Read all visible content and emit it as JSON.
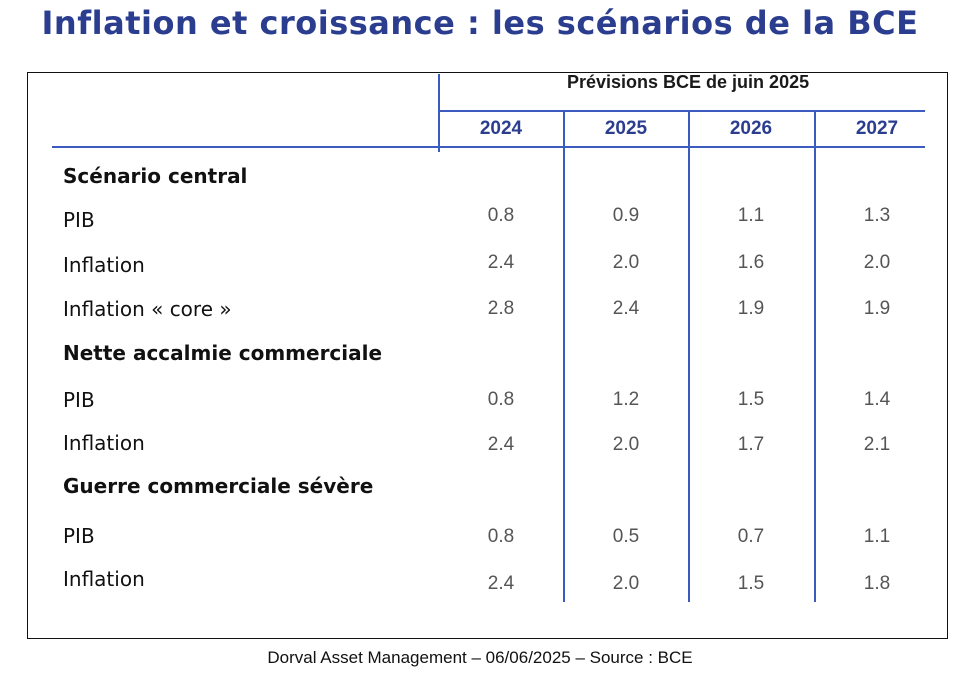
{
  "title": "Inflation et croissance : les scénarios de la BCE",
  "colors": {
    "title": "#2b3d8f",
    "accent": "#3d5bbf",
    "text": "#111111",
    "value": "#555555"
  },
  "table": {
    "super_header": "Prévisions BCE de juin 2025",
    "years": [
      "2024",
      "2025",
      "2026",
      "2027"
    ],
    "rows": [
      {
        "label": "Scénario central",
        "section": true,
        "values": []
      },
      {
        "label": "PIB",
        "section": false,
        "values": [
          "0.8",
          "0.9",
          "1.1",
          "1.3"
        ]
      },
      {
        "label": "Inflation",
        "section": false,
        "values": [
          "2.4",
          "2.0",
          "1.6",
          "2.0"
        ]
      },
      {
        "label": "Inflation « core »",
        "section": false,
        "values": [
          "2.8",
          "2.4",
          "1.9",
          "1.9"
        ]
      },
      {
        "label": "Nette accalmie commerciale",
        "section": true,
        "values": []
      },
      {
        "label": "PIB",
        "section": false,
        "values": [
          "0.8",
          "1.2",
          "1.5",
          "1.4"
        ]
      },
      {
        "label": "Inflation",
        "section": false,
        "values": [
          "2.4",
          "2.0",
          "1.7",
          "2.1"
        ]
      },
      {
        "label": "Guerre commerciale sévère",
        "section": true,
        "values": []
      },
      {
        "label": "PIB",
        "section": false,
        "values": [
          "0.8",
          "0.5",
          "0.7",
          "1.1"
        ]
      },
      {
        "label": "Inflation",
        "section": false,
        "values": [
          "2.4",
          "2.0",
          "1.5",
          "1.8"
        ]
      }
    ]
  },
  "footer": "Dorval Asset Management – 06/06/2025 – Source : BCE"
}
